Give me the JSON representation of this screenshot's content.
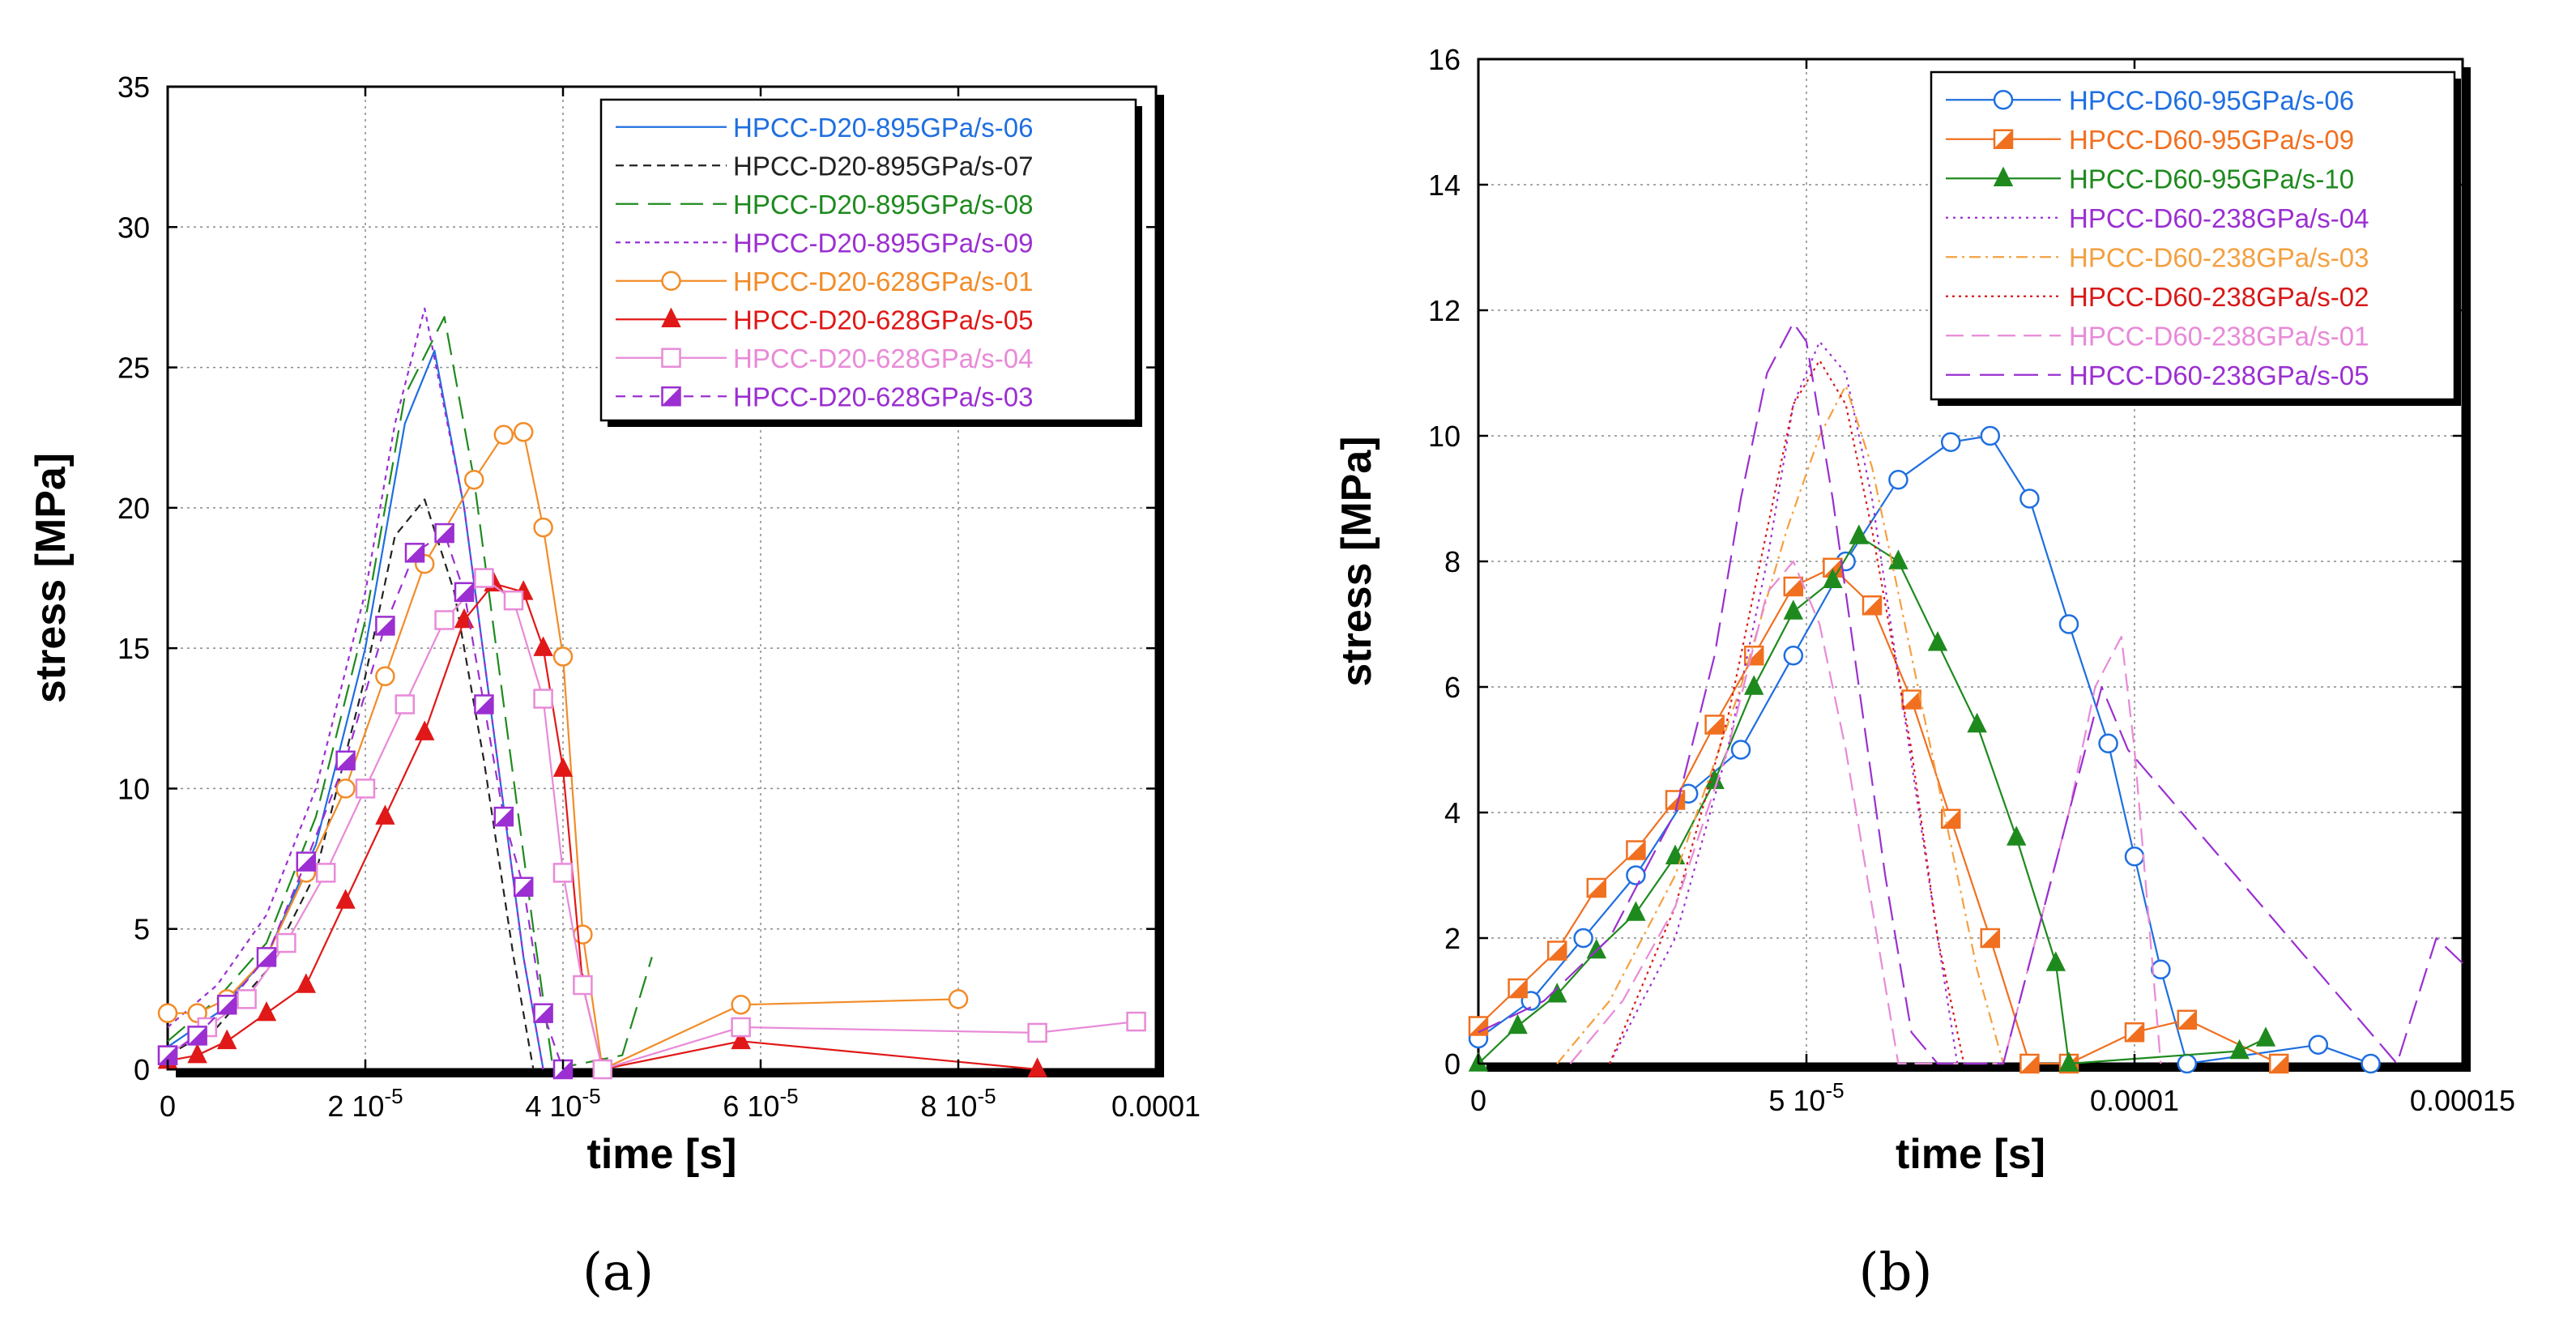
{
  "chart_data": [
    {
      "panel_label": "(a)",
      "type": "line",
      "xlabel": "time [s]",
      "ylabel": "stress [MPa]",
      "xlim": [
        0,
        0.0001
      ],
      "ylim": [
        0,
        35
      ],
      "x_ticks": [
        0,
        2e-05,
        4e-05,
        6e-05,
        8e-05,
        0.0001
      ],
      "x_tick_labels": [
        "0",
        "2 10",
        "4 10",
        "6 10",
        "8 10",
        "0.0001"
      ],
      "x_tick_exponent": [
        "",
        "-5",
        "-5",
        "-5",
        "-5",
        ""
      ],
      "y_ticks": [
        0,
        5,
        10,
        15,
        20,
        25,
        30,
        35
      ],
      "y_tick_labels": [
        "0",
        "5",
        "10",
        "15",
        "20",
        "25",
        "30",
        "35"
      ],
      "grid": true,
      "legend_position": "top-right",
      "series": [
        {
          "name": "HPCC-D20-895GPa/s-06",
          "color": "#1f6fe0",
          "dash": "",
          "marker": "none",
          "x": [
            0,
            5e-06,
            1e-05,
            1.5e-05,
            2e-05,
            2.4e-05,
            2.7e-05,
            3e-05,
            3.3e-05,
            3.6e-05,
            3.8e-05
          ],
          "y": [
            0.8,
            2,
            4,
            8,
            15,
            23,
            25.6,
            20,
            12,
            4,
            0
          ]
        },
        {
          "name": "HPCC-D20-895GPa/s-07",
          "color": "#222222",
          "dash": "10,7",
          "marker": "none",
          "x": [
            0,
            5e-06,
            1e-05,
            1.5e-05,
            2e-05,
            2.3e-05,
            2.6e-05,
            2.9e-05,
            3.2e-05,
            3.5e-05,
            3.7e-05
          ],
          "y": [
            0.5,
            1.5,
            3.5,
            7,
            14,
            19,
            20.3,
            17,
            11,
            4,
            0
          ]
        },
        {
          "name": "HPCC-D20-895GPa/s-08",
          "color": "#1e8a1e",
          "dash": "28,12",
          "marker": "none",
          "x": [
            0,
            5e-06,
            1e-05,
            1.5e-05,
            2e-05,
            2.4e-05,
            2.8e-05,
            3.1e-05,
            3.4e-05,
            3.7e-05,
            3.9e-05,
            4.6e-05,
            4.9e-05
          ],
          "y": [
            1,
            2.5,
            4.5,
            9,
            16,
            24,
            26.8,
            21,
            13,
            5,
            0,
            0.5,
            4
          ]
        },
        {
          "name": "HPCC-D20-895GPa/s-09",
          "color": "#9b2fd1",
          "dash": "6,6",
          "marker": "none",
          "x": [
            0,
            5e-06,
            1e-05,
            1.5e-05,
            2e-05,
            2.3e-05,
            2.6e-05,
            3e-05,
            3.3e-05,
            3.6e-05,
            3.8e-05
          ],
          "y": [
            1.5,
            3,
            5.5,
            10,
            17,
            23,
            27.1,
            20,
            12,
            4,
            0
          ]
        },
        {
          "name": "HPCC-D20-628GPa/s-01",
          "color": "#f28c28",
          "dash": "",
          "marker": "circle",
          "x": [
            0,
            3e-06,
            6e-06,
            1e-05,
            1.4e-05,
            1.8e-05,
            2.2e-05,
            2.6e-05,
            3.1e-05,
            3.4e-05,
            3.6e-05,
            3.8e-05,
            4e-05,
            4.2e-05,
            4.4e-05,
            5.8e-05,
            8e-05
          ],
          "y": [
            2,
            2,
            2.5,
            4,
            7,
            10,
            14,
            18,
            21,
            22.6,
            22.7,
            19.3,
            14.7,
            4.8,
            0,
            2.3,
            2.5
          ]
        },
        {
          "name": "HPCC-D20-628GPa/s-05",
          "color": "#e01818",
          "dash": "",
          "marker": "triangle",
          "x": [
            0,
            3e-06,
            6e-06,
            1e-05,
            1.4e-05,
            1.8e-05,
            2.2e-05,
            2.6e-05,
            3e-05,
            3.3e-05,
            3.6e-05,
            3.8e-05,
            4e-05,
            4.2e-05,
            4.4e-05,
            5.8e-05,
            8.8e-05
          ],
          "y": [
            0.3,
            0.5,
            1,
            2,
            3,
            6,
            9,
            12,
            16,
            17.3,
            17,
            15,
            10.7,
            3,
            0,
            1,
            0
          ]
        },
        {
          "name": "HPCC-D20-628GPa/s-04",
          "color": "#e88ad8",
          "dash": "",
          "marker": "square",
          "x": [
            0,
            4e-06,
            8e-06,
            1.2e-05,
            1.6e-05,
            2e-05,
            2.4e-05,
            2.8e-05,
            3.2e-05,
            3.5e-05,
            3.8e-05,
            4e-05,
            4.2e-05,
            4.4e-05,
            5.8e-05,
            8.8e-05,
            9.8e-05
          ],
          "y": [
            0.5,
            1.5,
            2.5,
            4.5,
            7,
            10,
            13,
            16,
            17.5,
            16.7,
            13.2,
            7,
            3,
            0,
            1.5,
            1.3,
            1.7
          ]
        },
        {
          "name": "HPCC-D20-628GPa/s-03",
          "color": "#9b2fd1",
          "dash": "12,9",
          "marker": "halfsquare",
          "x": [
            0,
            3e-06,
            6e-06,
            1e-05,
            1.4e-05,
            1.8e-05,
            2.2e-05,
            2.5e-05,
            2.8e-05,
            3e-05,
            3.2e-05,
            3.4e-05,
            3.6e-05,
            3.8e-05,
            4e-05
          ],
          "y": [
            0.5,
            1.2,
            2.3,
            4,
            7.4,
            11,
            15.8,
            18.4,
            19.1,
            17,
            13,
            9,
            6.5,
            2,
            0
          ]
        }
      ]
    },
    {
      "panel_label": "(b)",
      "type": "line",
      "xlabel": "time [s]",
      "ylabel": "stress [MPa]",
      "xlim": [
        0,
        0.00015
      ],
      "ylim": [
        0,
        16
      ],
      "x_ticks": [
        0,
        5e-05,
        0.0001,
        0.00015
      ],
      "x_tick_labels": [
        "0",
        "5 10",
        "0.0001",
        "0.00015"
      ],
      "x_tick_exponent": [
        "",
        "-5",
        "",
        ""
      ],
      "y_ticks": [
        0,
        2,
        4,
        6,
        8,
        10,
        12,
        14,
        16
      ],
      "y_tick_labels": [
        "0",
        "2",
        "4",
        "6",
        "8",
        "10",
        "12",
        "14",
        "16"
      ],
      "grid": true,
      "legend_position": "top-right",
      "series": [
        {
          "name": "HPCC-D60-95GPa/s-06",
          "color": "#1f6fe0",
          "dash": "",
          "marker": "circle",
          "x": [
            0,
            8e-06,
            1.6e-05,
            2.4e-05,
            3.2e-05,
            4e-05,
            4.8e-05,
            5.6e-05,
            6.4e-05,
            7.2e-05,
            7.8e-05,
            8.4e-05,
            9e-05,
            9.6e-05,
            0.0001,
            0.000104,
            0.000108,
            0.000128,
            0.000136
          ],
          "y": [
            0.4,
            1,
            2,
            3,
            4.3,
            5,
            6.5,
            8,
            9.3,
            9.9,
            10,
            9,
            7,
            5.1,
            3.3,
            1.5,
            0,
            0.3,
            0
          ]
        },
        {
          "name": "HPCC-D60-95GPa/s-09",
          "color": "#f07020",
          "dash": "",
          "marker": "halfsquare",
          "x": [
            0,
            6e-06,
            1.2e-05,
            1.8e-05,
            2.4e-05,
            3e-05,
            3.6e-05,
            4.2e-05,
            4.8e-05,
            5.4e-05,
            6e-05,
            6.6e-05,
            7.2e-05,
            7.8e-05,
            8.4e-05,
            9e-05,
            0.0001,
            0.000108,
            0.000122
          ],
          "y": [
            0.6,
            1.2,
            1.8,
            2.8,
            3.4,
            4.2,
            5.4,
            6.5,
            7.6,
            7.9,
            7.3,
            5.8,
            3.9,
            2,
            0,
            0,
            0.5,
            0.7,
            0
          ]
        },
        {
          "name": "HPCC-D60-95GPa/s-10",
          "color": "#1e8a1e",
          "dash": "",
          "marker": "triangle",
          "x": [
            0,
            6e-06,
            1.2e-05,
            1.8e-05,
            2.4e-05,
            3e-05,
            3.6e-05,
            4.2e-05,
            4.8e-05,
            5.4e-05,
            5.8e-05,
            6.4e-05,
            7e-05,
            7.6e-05,
            8.2e-05,
            8.8e-05,
            9e-05,
            0.000116,
            0.00012
          ],
          "y": [
            0,
            0.6,
            1.1,
            1.8,
            2.4,
            3.3,
            4.5,
            6,
            7.2,
            7.7,
            8.4,
            8,
            6.7,
            5.4,
            3.6,
            1.6,
            0,
            0.2,
            0.4
          ]
        },
        {
          "name": "HPCC-D60-238GPa/s-04",
          "color": "#9b2fd1",
          "dash": "3,6",
          "marker": "none",
          "x": [
            2e-05,
            3e-05,
            3.8e-05,
            4.4e-05,
            4.8e-05,
            5.2e-05,
            5.6e-05,
            6e-05,
            6.5e-05,
            7e-05,
            7.3e-05
          ],
          "y": [
            0,
            2,
            5,
            8,
            10.5,
            11.5,
            11,
            9,
            5.5,
            2,
            0
          ]
        },
        {
          "name": "HPCC-D60-238GPa/s-03",
          "color": "#f4a040",
          "dash": "14,6,3,6",
          "marker": "none",
          "x": [
            1.2e-05,
            2e-05,
            3e-05,
            4e-05,
            4.7e-05,
            5.2e-05,
            5.6e-05,
            6e-05,
            6.5e-05,
            7e-05,
            7.6e-05,
            8e-05
          ],
          "y": [
            0,
            1,
            3,
            6,
            8.5,
            10,
            10.8,
            9.5,
            7,
            4.5,
            1.5,
            0
          ]
        },
        {
          "name": "HPCC-D60-238GPa/s-02",
          "color": "#d81818",
          "dash": "3,5",
          "marker": "none",
          "x": [
            2e-05,
            3e-05,
            3.8e-05,
            4.4e-05,
            4.8e-05,
            5.2e-05,
            5.6e-05,
            6e-05,
            6.6e-05,
            7e-05,
            7.4e-05
          ],
          "y": [
            0,
            2.5,
            5.5,
            8.5,
            10.5,
            11.2,
            10.5,
            8.5,
            5,
            2,
            0
          ]
        },
        {
          "name": "HPCC-D60-238GPa/s-01",
          "color": "#e88ad8",
          "dash": "22,10",
          "marker": "none",
          "x": [
            1.4e-05,
            2.2e-05,
            3e-05,
            3.8e-05,
            4.4e-05,
            4.8e-05,
            5.2e-05,
            5.6e-05,
            6e-05,
            6.4e-05,
            8e-05,
            8.5e-05,
            9e-05,
            9.4e-05,
            9.8e-05,
            0.0001,
            0.000104
          ],
          "y": [
            0,
            1,
            2.5,
            5,
            7.5,
            8,
            7,
            5,
            2.5,
            0,
            0,
            2,
            4,
            6,
            6.8,
            5,
            0
          ]
        },
        {
          "name": "HPCC-D60-238GPa/s-05",
          "color": "#9b2fd1",
          "dash": "30,12",
          "marker": "none",
          "x": [
            0,
            1e-05,
            2e-05,
            3e-05,
            3.6e-05,
            4e-05,
            4.4e-05,
            4.8e-05,
            5e-05,
            5.4e-05,
            5.8e-05,
            6.2e-05,
            6.6e-05,
            7e-05,
            8e-05,
            8.5e-05,
            9e-05,
            9.5e-05,
            9.9e-05,
            0.00014,
            0.000146,
            0.00015
          ],
          "y": [
            0.5,
            1,
            2,
            4,
            6.5,
            9,
            11,
            11.8,
            11.5,
            9,
            6,
            3,
            0.5,
            0,
            0,
            2,
            4,
            6,
            5,
            0,
            2,
            1.6
          ]
        }
      ]
    }
  ]
}
